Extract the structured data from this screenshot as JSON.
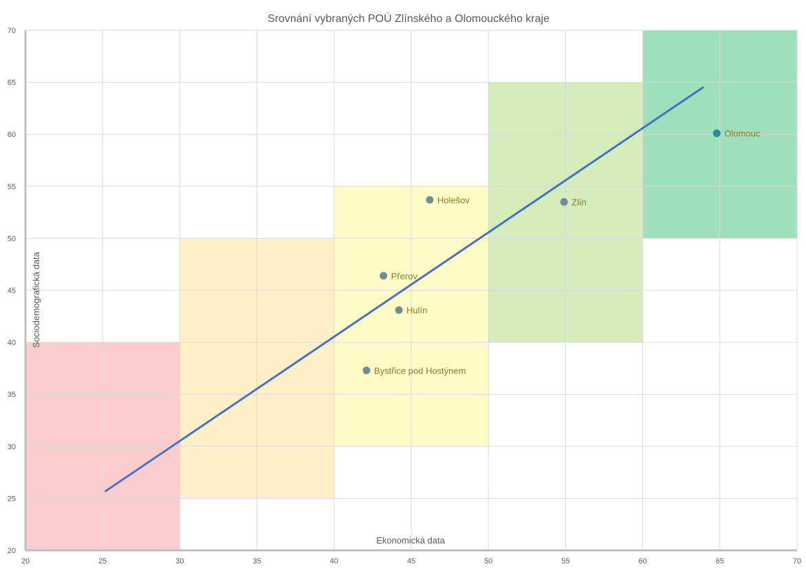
{
  "chart_data": {
    "type": "scatter",
    "title": "Srovnání vybraných POÚ Zlínského a Olomouckého kraje",
    "xlabel": "Ekonomická data",
    "ylabel": "Sociodemografická data",
    "xlim": [
      20,
      70
    ],
    "ylim": [
      20,
      70
    ],
    "x_ticks": [
      "20",
      "25",
      "30",
      "35",
      "40",
      "45",
      "50",
      "55",
      "60",
      "65",
      "70"
    ],
    "y_ticks": [
      "20",
      "25",
      "30",
      "35",
      "40",
      "45",
      "50",
      "55",
      "60",
      "65",
      "70"
    ],
    "grid": true,
    "zones": [
      {
        "x": [
          20,
          30
        ],
        "y": [
          20,
          40
        ],
        "color": "#fccdcd"
      },
      {
        "x": [
          30,
          40
        ],
        "y": [
          25,
          50
        ],
        "color": "#fff0c8"
      },
      {
        "x": [
          40,
          50
        ],
        "y": [
          30,
          55
        ],
        "color": "#fffbc6"
      },
      {
        "x": [
          50,
          60
        ],
        "y": [
          40,
          65
        ],
        "color": "#d4edbb"
      },
      {
        "x": [
          60,
          70
        ],
        "y": [
          50,
          70
        ],
        "color": "#9de0bb"
      }
    ],
    "points": [
      {
        "label": "Holešov",
        "x": 46.2,
        "y": 53.7,
        "color": "#6e8d96"
      },
      {
        "label": "Zlín",
        "x": 54.9,
        "y": 53.5,
        "color": "#6e8d96"
      },
      {
        "label": "Olomouc",
        "x": 64.8,
        "y": 60.1,
        "color": "#2a8a9e"
      },
      {
        "label": "Přerov",
        "x": 43.2,
        "y": 46.4,
        "color": "#6e8d96"
      },
      {
        "label": "Hulín",
        "x": 44.2,
        "y": 43.1,
        "color": "#6e8d96"
      },
      {
        "label": "Bystřice pod Hostýnem",
        "x": 42.1,
        "y": 37.3,
        "color": "#6e8d96"
      }
    ],
    "trendline": {
      "from": [
        25.2,
        25.7
      ],
      "to": [
        63.9,
        64.5
      ],
      "color": "#4472c4"
    },
    "colors": {
      "grid": "#d9d9d9",
      "axis": "#bfbfbf",
      "text": "#595959",
      "label": "#7f7f2a"
    }
  }
}
